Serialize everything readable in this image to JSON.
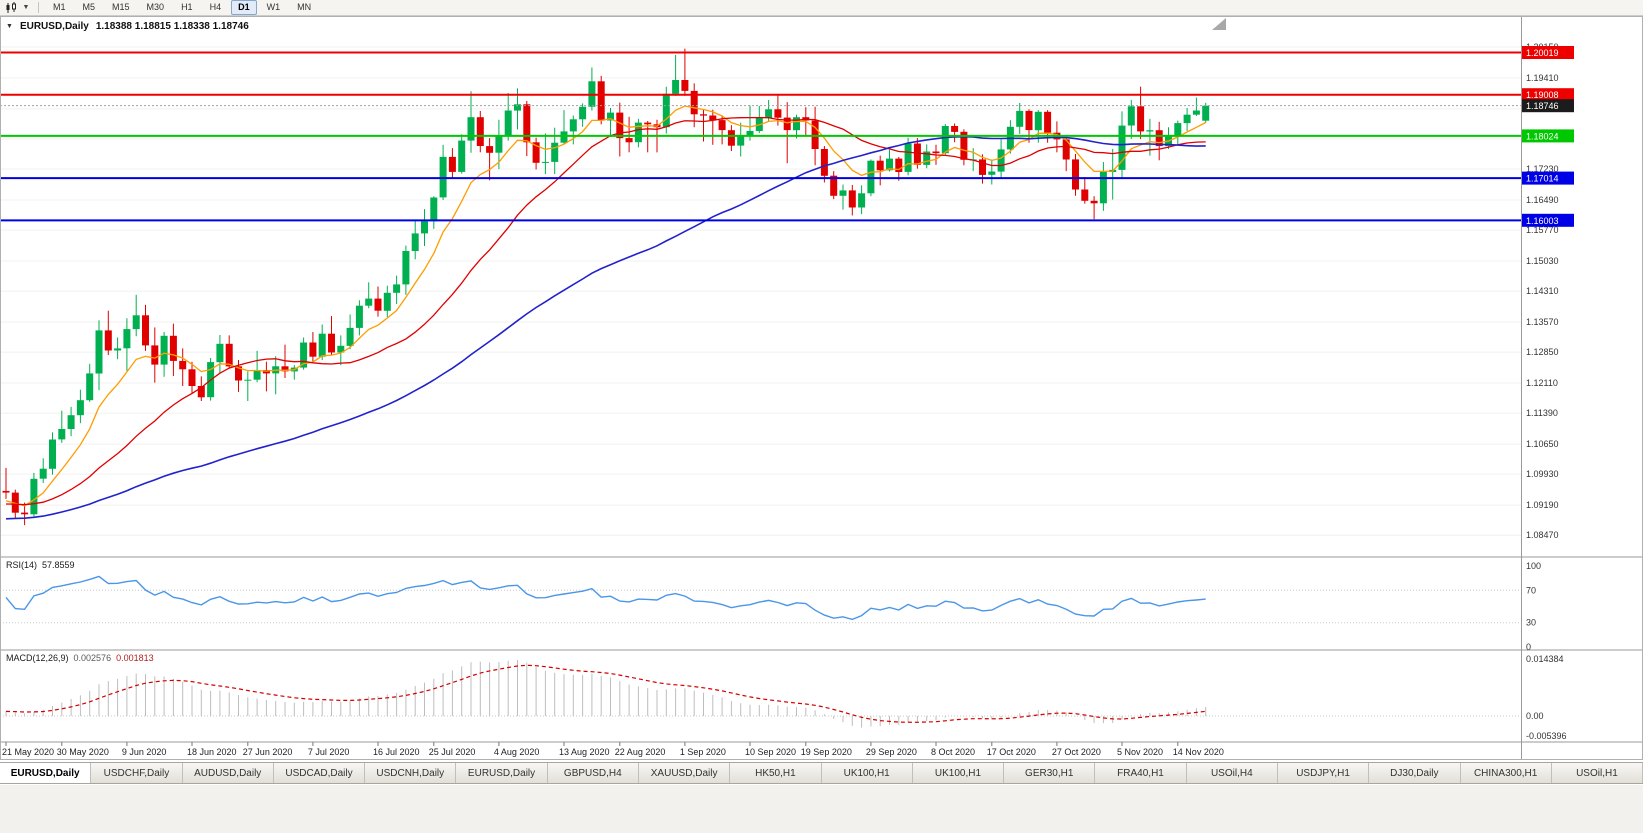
{
  "toolbar": {
    "chart_type_icon": "candlestick-chart-icon",
    "timeframes": [
      "M1",
      "M5",
      "M15",
      "M30",
      "H1",
      "H4",
      "D1",
      "W1",
      "MN"
    ],
    "active_timeframe": "D1"
  },
  "chart_header": {
    "collapse_icon": "▼",
    "title": "EURUSD,Daily",
    "ohlc": "1.18388 1.18815 1.18338 1.18746"
  },
  "indicators": {
    "rsi_label": "RSI(14)",
    "rsi_value": "57.8559",
    "macd_label": "MACD(12,26,9)",
    "macd_value_main": "0.002576",
    "macd_value_signal": "0.001813"
  },
  "colors": {
    "candle_up": "#00b050",
    "candle_down": "#e00000",
    "grid": "#f0f0f0",
    "axis_text": "#333333",
    "separator": "#9a9a9a",
    "current_price_line": "#a0a0a0"
  },
  "chart_data": {
    "type": "candlestick",
    "symbol": "EURUSD",
    "period": "Daily",
    "title": "EURUSD,Daily 1.18388 1.18815 1.18338 1.18746",
    "price_range": [
      1.0802,
      1.207
    ],
    "price_axis_labels": [
      "1.20150",
      "1.19410",
      "1.18670",
      "1.17950",
      "1.17230",
      "1.16490",
      "1.15770",
      "1.15030",
      "1.14310",
      "1.13570",
      "1.12850",
      "1.12110",
      "1.11390",
      "1.10650",
      "1.09930",
      "1.09190",
      "1.08470"
    ],
    "horizontal_lines": [
      {
        "price": 1.20019,
        "label": "1.20019",
        "color": "#ee0000"
      },
      {
        "price": 1.19008,
        "label": "1.19008",
        "color": "#ee0000"
      },
      {
        "price": 1.18024,
        "label": "1.18024",
        "color": "#00c800"
      },
      {
        "price": 1.17014,
        "label": "1.17014",
        "color": "#0000e6"
      },
      {
        "price": 1.16003,
        "label": "1.16003",
        "color": "#0000e6"
      }
    ],
    "current_price": {
      "price": 1.18746,
      "label": "1.18746",
      "box_color": "#1c1c1c"
    },
    "date_labels": [
      {
        "t": "21 May 2020",
        "i": 0
      },
      {
        "t": "30 May 2020",
        "i": 6
      },
      {
        "t": "9 Jun 2020",
        "i": 13
      },
      {
        "t": "18 Jun 2020",
        "i": 20
      },
      {
        "t": "27 Jun 2020",
        "i": 26
      },
      {
        "t": "7 Jul 2020",
        "i": 33
      },
      {
        "t": "16 Jul 2020",
        "i": 40
      },
      {
        "t": "25 Jul 2020",
        "i": 46
      },
      {
        "t": "4 Aug 2020",
        "i": 53
      },
      {
        "t": "13 Aug 2020",
        "i": 60
      },
      {
        "t": "22 Aug 2020",
        "i": 66
      },
      {
        "t": "1 Sep 2020",
        "i": 73
      },
      {
        "t": "10 Sep 2020",
        "i": 80
      },
      {
        "t": "19 Sep 2020",
        "i": 86
      },
      {
        "t": "29 Sep 2020",
        "i": 93
      },
      {
        "t": "8 Oct 2020",
        "i": 100
      },
      {
        "t": "17 Oct 2020",
        "i": 106
      },
      {
        "t": "27 Oct 2020",
        "i": 113
      },
      {
        "t": "5 Nov 2020",
        "i": 120
      },
      {
        "t": "14 Nov 2020",
        "i": 126
      }
    ],
    "moving_averages": [
      {
        "name": "fast",
        "method": "ema",
        "estimated_period": 8,
        "color": "#ff9c00"
      },
      {
        "name": "mid",
        "method": "sma",
        "estimated_period": 20,
        "color": "#e00000"
      },
      {
        "name": "slow",
        "method": "sma",
        "estimated_period": 55,
        "color": "#2222cc"
      }
    ],
    "rsi": {
      "period": 14,
      "value": 57.8559,
      "axis_labels": [
        "100",
        "70",
        "30",
        "0"
      ],
      "levels": [
        70,
        30
      ],
      "line_color": "#4a96e8"
    },
    "macd": {
      "fast": 12,
      "slow": 26,
      "signal": 9,
      "value": 0.002576,
      "signal_value": 0.001813,
      "axis_labels": [
        "0.014384",
        "0.00",
        "-0.005396"
      ],
      "hist_color": "#bdbdbd",
      "signal_color": "#d40000"
    },
    "candles": [
      [
        1.0953,
        1.1008,
        1.0934,
        1.0949
      ],
      [
        1.0949,
        1.0956,
        1.0886,
        1.0901
      ],
      [
        1.0901,
        1.0925,
        1.0871,
        1.0897
      ],
      [
        1.0897,
        1.0996,
        1.0891,
        1.0982
      ],
      [
        1.0982,
        1.1031,
        1.0972,
        1.1006
      ],
      [
        1.1006,
        1.1093,
        1.0992,
        1.1076
      ],
      [
        1.1076,
        1.1145,
        1.1068,
        1.1101
      ],
      [
        1.1101,
        1.1154,
        1.1084,
        1.1134
      ],
      [
        1.1134,
        1.1195,
        1.1115,
        1.117
      ],
      [
        1.117,
        1.1257,
        1.1166,
        1.1234
      ],
      [
        1.1234,
        1.1361,
        1.1194,
        1.1337
      ],
      [
        1.1337,
        1.1384,
        1.1278,
        1.1289
      ],
      [
        1.1289,
        1.132,
        1.1268,
        1.1294
      ],
      [
        1.1294,
        1.1366,
        1.124,
        1.134
      ],
      [
        1.134,
        1.1422,
        1.1323,
        1.1373
      ],
      [
        1.1373,
        1.1398,
        1.1288,
        1.1301
      ],
      [
        1.1301,
        1.1344,
        1.1212,
        1.1255
      ],
      [
        1.1255,
        1.1333,
        1.1226,
        1.1324
      ],
      [
        1.1324,
        1.1353,
        1.1228,
        1.1264
      ],
      [
        1.1264,
        1.1294,
        1.1204,
        1.1244
      ],
      [
        1.1244,
        1.1262,
        1.1185,
        1.1204
      ],
      [
        1.1204,
        1.1227,
        1.1168,
        1.1177
      ],
      [
        1.1177,
        1.1271,
        1.1169,
        1.1261
      ],
      [
        1.1261,
        1.1326,
        1.1233,
        1.1305
      ],
      [
        1.1305,
        1.1325,
        1.1247,
        1.1251
      ],
      [
        1.1251,
        1.1266,
        1.119,
        1.1217
      ],
      [
        1.1217,
        1.1239,
        1.1168,
        1.1219
      ],
      [
        1.1219,
        1.1288,
        1.1213,
        1.1242
      ],
      [
        1.1242,
        1.1262,
        1.1191,
        1.1234
      ],
      [
        1.1234,
        1.1275,
        1.1184,
        1.1251
      ],
      [
        1.1251,
        1.1303,
        1.1223,
        1.1239
      ],
      [
        1.1239,
        1.1254,
        1.1219,
        1.1248
      ],
      [
        1.1248,
        1.132,
        1.1243,
        1.1308
      ],
      [
        1.1308,
        1.1333,
        1.1259,
        1.1274
      ],
      [
        1.1274,
        1.1351,
        1.1266,
        1.1329
      ],
      [
        1.1329,
        1.1371,
        1.1277,
        1.1284
      ],
      [
        1.1284,
        1.1325,
        1.1254,
        1.13
      ],
      [
        1.13,
        1.1375,
        1.1292,
        1.1343
      ],
      [
        1.1343,
        1.1409,
        1.1325,
        1.1396
      ],
      [
        1.1396,
        1.1452,
        1.139,
        1.1413
      ],
      [
        1.1413,
        1.1442,
        1.137,
        1.1384
      ],
      [
        1.1384,
        1.1444,
        1.1369,
        1.1427
      ],
      [
        1.1427,
        1.1468,
        1.14,
        1.1447
      ],
      [
        1.1447,
        1.154,
        1.1422,
        1.1527
      ],
      [
        1.1527,
        1.1601,
        1.1507,
        1.1569
      ],
      [
        1.1569,
        1.1627,
        1.1539,
        1.1598
      ],
      [
        1.1598,
        1.1658,
        1.158,
        1.1655
      ],
      [
        1.1655,
        1.1781,
        1.1649,
        1.1752
      ],
      [
        1.1752,
        1.1773,
        1.17,
        1.1716
      ],
      [
        1.1716,
        1.1806,
        1.1712,
        1.1791
      ],
      [
        1.1791,
        1.1909,
        1.1762,
        1.1847
      ],
      [
        1.1847,
        1.1862,
        1.1763,
        1.1778
      ],
      [
        1.1778,
        1.1797,
        1.1696,
        1.1762
      ],
      [
        1.1762,
        1.1841,
        1.1723,
        1.1803
      ],
      [
        1.1803,
        1.1905,
        1.1791,
        1.1863
      ],
      [
        1.1863,
        1.1916,
        1.1818,
        1.1878
      ],
      [
        1.1878,
        1.1886,
        1.1754,
        1.1787
      ],
      [
        1.1787,
        1.1798,
        1.1722,
        1.1738
      ],
      [
        1.1738,
        1.1808,
        1.1711,
        1.174
      ],
      [
        1.174,
        1.1822,
        1.1711,
        1.1786
      ],
      [
        1.1786,
        1.1864,
        1.1782,
        1.1813
      ],
      [
        1.1813,
        1.1851,
        1.1782,
        1.1842
      ],
      [
        1.1842,
        1.188,
        1.1824,
        1.1872
      ],
      [
        1.1872,
        1.1966,
        1.1863,
        1.1933
      ],
      [
        1.1933,
        1.1946,
        1.183,
        1.1839
      ],
      [
        1.1839,
        1.1869,
        1.18,
        1.1858
      ],
      [
        1.1858,
        1.1882,
        1.1753,
        1.1797
      ],
      [
        1.1797,
        1.1848,
        1.1763,
        1.1787
      ],
      [
        1.1787,
        1.1843,
        1.1775,
        1.1834
      ],
      [
        1.1834,
        1.1838,
        1.1763,
        1.183
      ],
      [
        1.183,
        1.1841,
        1.1763,
        1.1823
      ],
      [
        1.1823,
        1.192,
        1.1808,
        1.1903
      ],
      [
        1.1903,
        1.1996,
        1.1898,
        1.1936
      ],
      [
        1.1936,
        1.2011,
        1.1898,
        1.191
      ],
      [
        1.191,
        1.1928,
        1.1823,
        1.1854
      ],
      [
        1.1854,
        1.1865,
        1.1789,
        1.1851
      ],
      [
        1.1851,
        1.1865,
        1.1781,
        1.184
      ],
      [
        1.184,
        1.185,
        1.1782,
        1.1816
      ],
      [
        1.1816,
        1.1828,
        1.1766,
        1.1779
      ],
      [
        1.1779,
        1.1834,
        1.1753,
        1.1801
      ],
      [
        1.1801,
        1.1875,
        1.1791,
        1.1814
      ],
      [
        1.1814,
        1.1874,
        1.1809,
        1.1845
      ],
      [
        1.1845,
        1.1888,
        1.1836,
        1.1866
      ],
      [
        1.1866,
        1.1899,
        1.1827,
        1.1846
      ],
      [
        1.1846,
        1.1883,
        1.1737,
        1.1816
      ],
      [
        1.1816,
        1.1853,
        1.1796,
        1.1847
      ],
      [
        1.1847,
        1.1871,
        1.1801,
        1.1839
      ],
      [
        1.1839,
        1.1872,
        1.1732,
        1.1771
      ],
      [
        1.1771,
        1.1778,
        1.1691,
        1.1707
      ],
      [
        1.1707,
        1.1718,
        1.1651,
        1.1659
      ],
      [
        1.1659,
        1.1686,
        1.1626,
        1.1672
      ],
      [
        1.1672,
        1.1685,
        1.1612,
        1.1631
      ],
      [
        1.1631,
        1.1684,
        1.1615,
        1.1665
      ],
      [
        1.1665,
        1.1746,
        1.1658,
        1.1743
      ],
      [
        1.1743,
        1.1755,
        1.1684,
        1.172
      ],
      [
        1.172,
        1.1769,
        1.1717,
        1.1748
      ],
      [
        1.1748,
        1.1752,
        1.1695,
        1.1716
      ],
      [
        1.1716,
        1.1798,
        1.1708,
        1.1784
      ],
      [
        1.1784,
        1.1797,
        1.1724,
        1.1733
      ],
      [
        1.1733,
        1.1782,
        1.1725,
        1.1765
      ],
      [
        1.1765,
        1.1781,
        1.1733,
        1.1761
      ],
      [
        1.1761,
        1.1831,
        1.1757,
        1.1826
      ],
      [
        1.1826,
        1.1832,
        1.1787,
        1.1812
      ],
      [
        1.1812,
        1.1818,
        1.1732,
        1.1745
      ],
      [
        1.1745,
        1.1773,
        1.1718,
        1.1746
      ],
      [
        1.1746,
        1.1758,
        1.1688,
        1.1709
      ],
      [
        1.1709,
        1.1746,
        1.1686,
        1.1717
      ],
      [
        1.1717,
        1.1794,
        1.1703,
        1.177
      ],
      [
        1.177,
        1.184,
        1.176,
        1.1824
      ],
      [
        1.1824,
        1.1881,
        1.1807,
        1.1862
      ],
      [
        1.1862,
        1.1866,
        1.1786,
        1.1816
      ],
      [
        1.1816,
        1.1864,
        1.1786,
        1.186
      ],
      [
        1.186,
        1.1864,
        1.1786,
        1.181
      ],
      [
        1.181,
        1.1837,
        1.1763,
        1.1794
      ],
      [
        1.1794,
        1.18,
        1.1718,
        1.1746
      ],
      [
        1.1746,
        1.1759,
        1.1659,
        1.1674
      ],
      [
        1.1674,
        1.1704,
        1.164,
        1.1647
      ],
      [
        1.1647,
        1.1658,
        1.1603,
        1.1641
      ],
      [
        1.1641,
        1.174,
        1.1623,
        1.1716
      ],
      [
        1.1716,
        1.1771,
        1.165,
        1.1721
      ],
      [
        1.1721,
        1.1861,
        1.1702,
        1.1827
      ],
      [
        1.1827,
        1.1888,
        1.1795,
        1.1873
      ],
      [
        1.1873,
        1.192,
        1.1795,
        1.1813
      ],
      [
        1.1813,
        1.1843,
        1.1755,
        1.1816
      ],
      [
        1.1816,
        1.1836,
        1.1744,
        1.1778
      ],
      [
        1.1778,
        1.1823,
        1.1771,
        1.1804
      ],
      [
        1.1804,
        1.1839,
        1.1779,
        1.1833
      ],
      [
        1.1833,
        1.1869,
        1.1814,
        1.1853
      ],
      [
        1.1853,
        1.1894,
        1.185,
        1.1863
      ],
      [
        1.18388,
        1.18815,
        1.18338,
        1.18746
      ]
    ]
  },
  "tabs": [
    "EURUSD,Daily",
    "USDCHF,Daily",
    "AUDUSD,Daily",
    "USDCAD,Daily",
    "USDCNH,Daily",
    "EURUSD,Daily",
    "GBPUSD,H4",
    "XAUUSD,Daily",
    "HK50,H1",
    "UK100,H1",
    "UK100,H1",
    "GER30,H1",
    "FRA40,H1",
    "USOil,H4",
    "USDJPY,H1",
    "DJ30,Daily",
    "CHINA300,H1",
    "USOil,H1"
  ],
  "active_tab_index": 0
}
